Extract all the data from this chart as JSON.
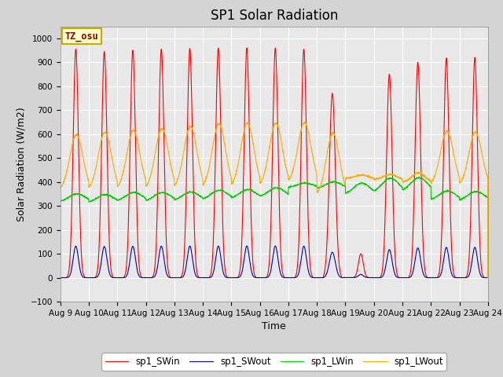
{
  "title": "SP1 Solar Radiation",
  "xlabel": "Time",
  "ylabel": "Solar Radiation (W/m2)",
  "ylim": [
    -100,
    1050
  ],
  "yticks": [
    -100,
    0,
    100,
    200,
    300,
    400,
    500,
    600,
    700,
    800,
    900,
    1000
  ],
  "colors": {
    "sp1_SWin": "#ff0000",
    "sp1_SWout": "#0000bb",
    "sp1_LWin": "#00cc00",
    "sp1_LWout": "#ffaa00"
  },
  "fig_background": "#d4d4d4",
  "plot_background": "#e8e8e8",
  "annotation_text": "TZ_osu",
  "annotation_fc": "#ffffcc",
  "annotation_ec": "#ccaa00",
  "annotation_tc": "#880000",
  "legend_labels": [
    "sp1_SWin",
    "sp1_SWout",
    "sp1_LWin",
    "sp1_LWout"
  ],
  "title_fontsize": 12,
  "label_fontsize": 9,
  "tick_fontsize": 7.5,
  "grid_color": "#ffffff",
  "n_days": 15,
  "start_day": 9
}
